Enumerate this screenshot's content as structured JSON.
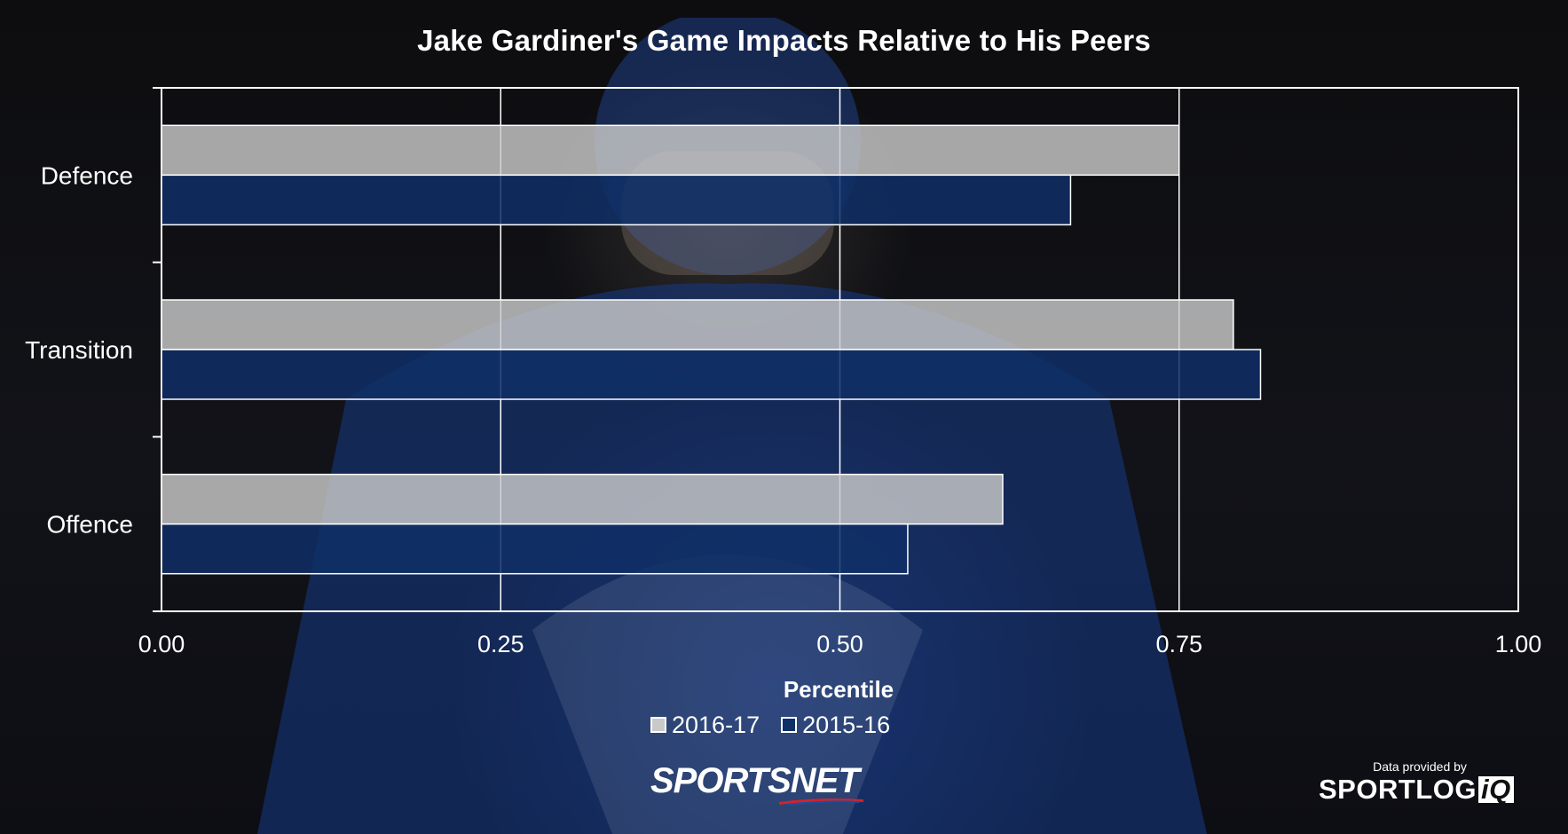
{
  "chart_data": {
    "type": "bar",
    "orientation": "horizontal",
    "title": "Jake Gardiner's Game Impacts Relative to His Peers",
    "xlabel": "Percentile",
    "ylabel": "",
    "categories": [
      "Defence",
      "Transition",
      "Offence"
    ],
    "series": [
      {
        "name": "2016-17",
        "values": [
          0.75,
          0.79,
          0.62
        ],
        "color": "#c9c9c9"
      },
      {
        "name": "2015-16",
        "values": [
          0.67,
          0.81,
          0.55
        ],
        "color": "#0f2f66"
      }
    ],
    "xlim": [
      0,
      1
    ],
    "xticks": [
      "0.00",
      "0.25",
      "0.50",
      "0.75",
      "1.00"
    ],
    "grid": true,
    "legend_position": "bottom"
  },
  "branding": {
    "publisher": "SPORTSNET",
    "credit_text": "Data provided by",
    "data_provider": "SPORTLOG",
    "data_provider_suffix": "iQ"
  }
}
